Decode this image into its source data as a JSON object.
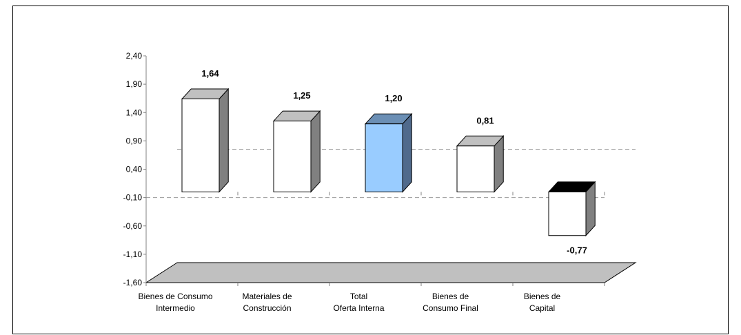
{
  "chart_data": {
    "type": "bar",
    "categories": [
      [
        "Bienes de Consumo",
        "Intermedio"
      ],
      [
        "Materiales de",
        "Construcción"
      ],
      [
        "Total",
        "Oferta Interna"
      ],
      [
        "Bienes de",
        "Consumo Final"
      ],
      [
        "Bienes de",
        "Capital"
      ]
    ],
    "values": [
      1.64,
      1.25,
      1.2,
      0.81,
      -0.77
    ],
    "value_labels": [
      "1,64",
      "1,25",
      "1,20",
      "0,81",
      "-0,77"
    ],
    "highlight_index": 2,
    "y_ticks": [
      2.4,
      1.9,
      1.4,
      0.9,
      0.4,
      -0.1,
      -0.6,
      -1.1,
      -1.6
    ],
    "y_tick_labels": [
      "2,40",
      "1,90",
      "1,40",
      "0,90",
      "0,40",
      "-0,10",
      "-0,60",
      "-1,10",
      "-1,60"
    ],
    "ylim": [
      -1.6,
      2.4
    ],
    "reference_lines": [
      0.4,
      -0.1
    ],
    "title": "",
    "xlabel": "",
    "ylabel": "",
    "grid": false,
    "colors": {
      "bar_front": "#ffffff",
      "bar_side": "#808080",
      "bar_top": "#c0c0c0",
      "highlight_front": "#99ccff",
      "highlight_side": "#506a8c",
      "highlight_top": "#6b8fb5",
      "negative_top": "#000000",
      "floor": "#c0c0c0",
      "border": "#000000",
      "ref_line": "#999999"
    }
  }
}
